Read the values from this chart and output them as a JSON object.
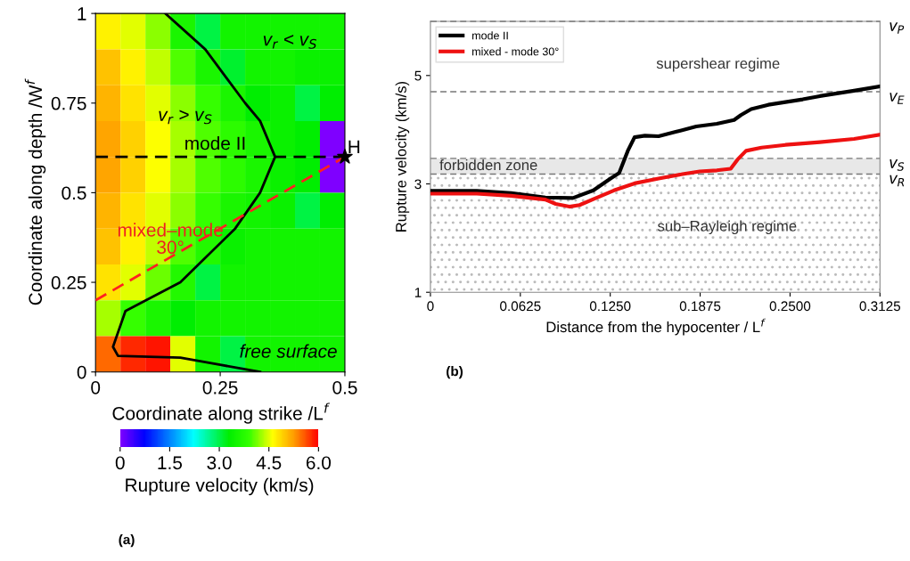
{
  "chart_data": [
    {
      "type": "heatmap",
      "xlabel": "Coordinate along strike /L$^{f}$",
      "ylabel": "Coordinate along depth /W$^{f}$",
      "clabel": "Rupture velocity (km/s)",
      "cells": [
        [
          4.7,
          4.5,
          4.2,
          3.6,
          3.0,
          3.5,
          3.5,
          3.5,
          3.5,
          3.5
        ],
        [
          5.0,
          4.7,
          4.4,
          4.0,
          3.6,
          3.1,
          3.5,
          3.5,
          3.4,
          3.4
        ],
        [
          5.1,
          4.8,
          4.5,
          4.2,
          3.9,
          3.6,
          3.3,
          3.4,
          3.0,
          3.3
        ],
        [
          5.2,
          4.9,
          4.6,
          4.3,
          4.0,
          3.8,
          3.6,
          3.4,
          3.3,
          0.0
        ],
        [
          5.2,
          4.9,
          4.6,
          4.3,
          4.0,
          3.8,
          3.6,
          3.4,
          3.3,
          0.0
        ],
        [
          5.1,
          4.8,
          4.5,
          4.2,
          3.9,
          3.6,
          3.5,
          3.4,
          3.0,
          3.3
        ],
        [
          5.0,
          4.7,
          4.4,
          4.0,
          3.7,
          3.4,
          3.5,
          3.5,
          3.5,
          3.5
        ],
        [
          4.8,
          4.5,
          4.1,
          3.7,
          3.0,
          3.5,
          3.5,
          3.5,
          3.5,
          3.5
        ],
        [
          4.3,
          3.9,
          3.6,
          3.3,
          3.5,
          3.5,
          3.5,
          3.5,
          3.5,
          3.5
        ],
        [
          5.5,
          5.8,
          5.9,
          4.5,
          3.5,
          3.0,
          3.5,
          3.5,
          3.5,
          3.5
        ]
      ],
      "clim": [
        0,
        6
      ],
      "cticks": [
        0,
        1.5,
        {
          "value": 3,
          "label": "3.0"
        },
        4.5,
        {
          "value": 6,
          "label": "6.0"
        }
      ],
      "xlim": [
        0,
        0.5
      ],
      "xticks": [
        0,
        0.25,
        0.5
      ],
      "ylim": [
        0,
        1
      ],
      "yticks": [
        0,
        0.25,
        0.5,
        0.75,
        1
      ],
      "series": [
        {
          "type": "line",
          "color": "#000000",
          "line_style": "solid",
          "x": [
            0.14,
            0.22,
            0.3,
            0.33,
            0.36,
            0.33,
            0.28,
            0.17,
            0.06,
            0.035,
            0.045,
            0.17,
            0.25,
            0.33
          ],
          "values": [
            1,
            0.9,
            0.75,
            0.7,
            0.6,
            0.5,
            0.4,
            0.25,
            0.17,
            0.07,
            0.045,
            0.04,
            0.02,
            0
          ]
        },
        {
          "type": "line",
          "color": "#000000",
          "line_style": "dashed",
          "x": [
            0,
            0.5
          ],
          "values": [
            0.6,
            0.6
          ]
        },
        {
          "type": "line",
          "color": "#ff2020",
          "line_style": "dashed",
          "x": [
            0,
            0.5
          ],
          "values": [
            0.2,
            0.6
          ]
        },
        {
          "type": "scatter",
          "color": "#000000",
          "marker": "star",
          "x": [
            0.5
          ],
          "values": [
            0.6
          ]
        }
      ],
      "annotations": [
        "v$_{r}$ > v$_{S}$",
        "v$_{r}$ < v$_{S}$",
        "free surface",
        "(a)",
        "mode II",
        "mixed–mode\n30°",
        "H"
      ]
    },
    {
      "type": "line",
      "xlabel": "Distance from the hypocenter / L$^{f}$",
      "ylabel": "Rupture velocity (km/s)",
      "xlim": [
        0,
        0.3125
      ],
      "xticks": [
        0,
        {
          "value": 0.0625,
          "label": "0.0625"
        },
        {
          "value": 0.125,
          "label": "0.1250"
        },
        {
          "value": 0.1875,
          "label": "0.1875"
        },
        {
          "value": 0.25,
          "label": "0.2500"
        },
        {
          "value": 0.3125,
          "label": "0.3125"
        }
      ],
      "ylim": [
        1,
        6
      ],
      "yticks": [
        1,
        3,
        5
      ],
      "grid": false,
      "legend": "top left",
      "line_style": "solid",
      "marker": "none",
      "series": [
        {
          "name": "mode II",
          "color": "#000000",
          "x": [
            0,
            0.0322,
            0.0561,
            0.0799,
            0.099,
            0.1133,
            0.1252,
            0.1312,
            0.1372,
            0.1419,
            0.1491,
            0.1586,
            0.1705,
            0.1848,
            0.1991,
            0.2111,
            0.2158,
            0.223,
            0.2349,
            0.2468,
            0.2588,
            0.2707,
            0.2826,
            0.2945,
            0.3125
          ],
          "values": [
            2.87,
            2.87,
            2.83,
            2.75,
            2.74,
            2.88,
            3.1,
            3.2,
            3.61,
            3.86,
            3.89,
            3.88,
            3.96,
            4.06,
            4.11,
            4.18,
            4.27,
            4.38,
            4.46,
            4.51,
            4.56,
            4.62,
            4.67,
            4.72,
            4.8
          ]
        },
        {
          "name": "mixed - mode 30°",
          "color": "#ee1111",
          "x": [
            0,
            0.0322,
            0.0561,
            0.0799,
            0.0871,
            0.0966,
            0.1037,
            0.1133,
            0.1276,
            0.1419,
            0.1586,
            0.1753,
            0.1872,
            0.1991,
            0.2087,
            0.2135,
            0.2194,
            0.2302,
            0.2468,
            0.2707,
            0.2945,
            0.3125
          ],
          "values": [
            2.82,
            2.82,
            2.78,
            2.71,
            2.63,
            2.58,
            2.61,
            2.72,
            2.88,
            3.01,
            3.1,
            3.18,
            3.23,
            3.25,
            3.28,
            3.45,
            3.61,
            3.67,
            3.72,
            3.77,
            3.83,
            3.91
          ]
        }
      ],
      "ref_lines": [
        {
          "axis": "y",
          "value": 6,
          "label": "v$_{P}$",
          "color": "#777777",
          "line_style": "dashed"
        },
        {
          "axis": "y",
          "value": 4.7,
          "label": "v$_{E}$",
          "color": "#777777",
          "line_style": "dashed"
        },
        {
          "axis": "y",
          "value": 3.47,
          "label": "v$_{S}$",
          "color": "#777777",
          "line_style": "dashed"
        },
        {
          "axis": "y",
          "value": 3.18,
          "label": "v$_{R}$",
          "color": "#777777",
          "line_style": "dashed"
        }
      ],
      "bands": [
        {
          "axis": "y",
          "from": 3.18,
          "to": 3.47,
          "label": "forbidden zone",
          "color": "#e8e8e8"
        },
        {
          "axis": "y",
          "from": 1,
          "to": 3.18,
          "label": "sub–Rayleigh regime",
          "color": "#bbbbbb"
        }
      ],
      "annotations": [
        "supershear regime",
        "(b)"
      ]
    }
  ]
}
